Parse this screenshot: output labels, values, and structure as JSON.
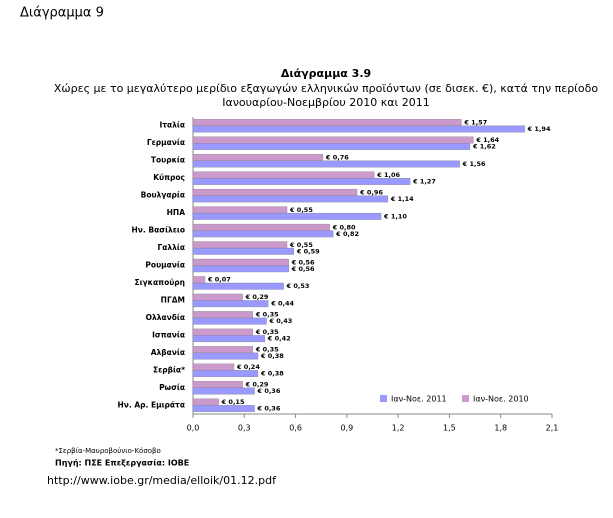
{
  "page_heading": "Διάγραμμα 9",
  "chart_data": {
    "type": "hbar",
    "title": "Διάγραμμα 3.9",
    "subtitle": [
      "Χώρες με το μεγαλύτερο μερίδιο εξαγωγών ελληνικών προϊόντων (σε δισεκ. €), κατά την περίοδο",
      "Ιανουαρίου-Νοεμβρίου 2010 και 2011"
    ],
    "categories": [
      "Ιταλία",
      "Γερμανία",
      "Τουρκία",
      "Κύπρος",
      "Βουλγαρία",
      "ΗΠΑ",
      "Ην. Βασίλειο",
      "Γαλλία",
      "Ρουμανία",
      "Σιγκαπούρη",
      "ΠΓΔΜ",
      "Ολλανδία",
      "Ισπανία",
      "Αλβανία",
      "Σερβία*",
      "Ρωσία",
      "Ην. Αρ. Εμιράτα"
    ],
    "series": [
      {
        "name": "Ιαν-Νοε. 2011",
        "color": "#9999ff",
        "values": [
          1.94,
          1.62,
          1.56,
          1.27,
          1.14,
          1.1,
          0.82,
          0.59,
          0.56,
          0.53,
          0.44,
          0.43,
          0.42,
          0.38,
          0.38,
          0.36,
          0.36
        ],
        "value_labels": [
          "€ 1,94",
          "€ 1,62",
          "€ 1,56",
          "€ 1,27",
          "€ 1,14",
          "€ 1,10",
          "€ 0,82",
          "€ 0,59",
          "€ 0,56",
          "€ 0,53",
          "€ 0,44",
          "€ 0,43",
          "€ 0,42",
          "€ 0,38",
          "€ 0,38",
          "€ 0,36",
          "€ 0,36"
        ]
      },
      {
        "name": "Ιαν-Νοε. 2010",
        "color": "#cc99cc",
        "values": [
          1.57,
          1.64,
          0.76,
          1.06,
          0.96,
          0.55,
          0.8,
          0.55,
          0.56,
          0.07,
          0.29,
          0.35,
          0.35,
          0.35,
          0.24,
          0.29,
          0.15
        ],
        "value_labels": [
          "€ 1,57",
          "€ 1,64",
          "€ 0,76",
          "€ 1,06",
          "€ 0,96",
          "€ 0,55",
          "€ 0,80",
          "€ 0,55",
          "€ 0,56",
          "€ 0,07",
          "€ 0,29",
          "€ 0,35",
          "€ 0,35",
          "€ 0,35",
          "€ 0,24",
          "€ 0,29",
          "€ 0,15"
        ]
      }
    ],
    "xlim": [
      0,
      2.1
    ],
    "xticks": [
      {
        "value": 0,
        "label": "0,0"
      },
      {
        "value": 0.3,
        "label": "0,3"
      },
      {
        "value": 0.6,
        "label": "0,6"
      },
      {
        "value": 0.9,
        "label": "0,9"
      },
      {
        "value": 1.2,
        "label": "1,2"
      },
      {
        "value": 1.5,
        "label": "1,5"
      },
      {
        "value": 1.8,
        "label": "1,8"
      },
      {
        "value": 2.1,
        "label": "2,1"
      }
    ],
    "legend": "lower-right",
    "footnote": "*Σερβία-Μαυροβούνιο-Κόσοβο",
    "source": "Πηγή: ΠΣΕ Επεξεργασία: ΙΟΒΕ"
  },
  "link": "http://www.iobe.gr/media/elloik/01.12.pdf"
}
